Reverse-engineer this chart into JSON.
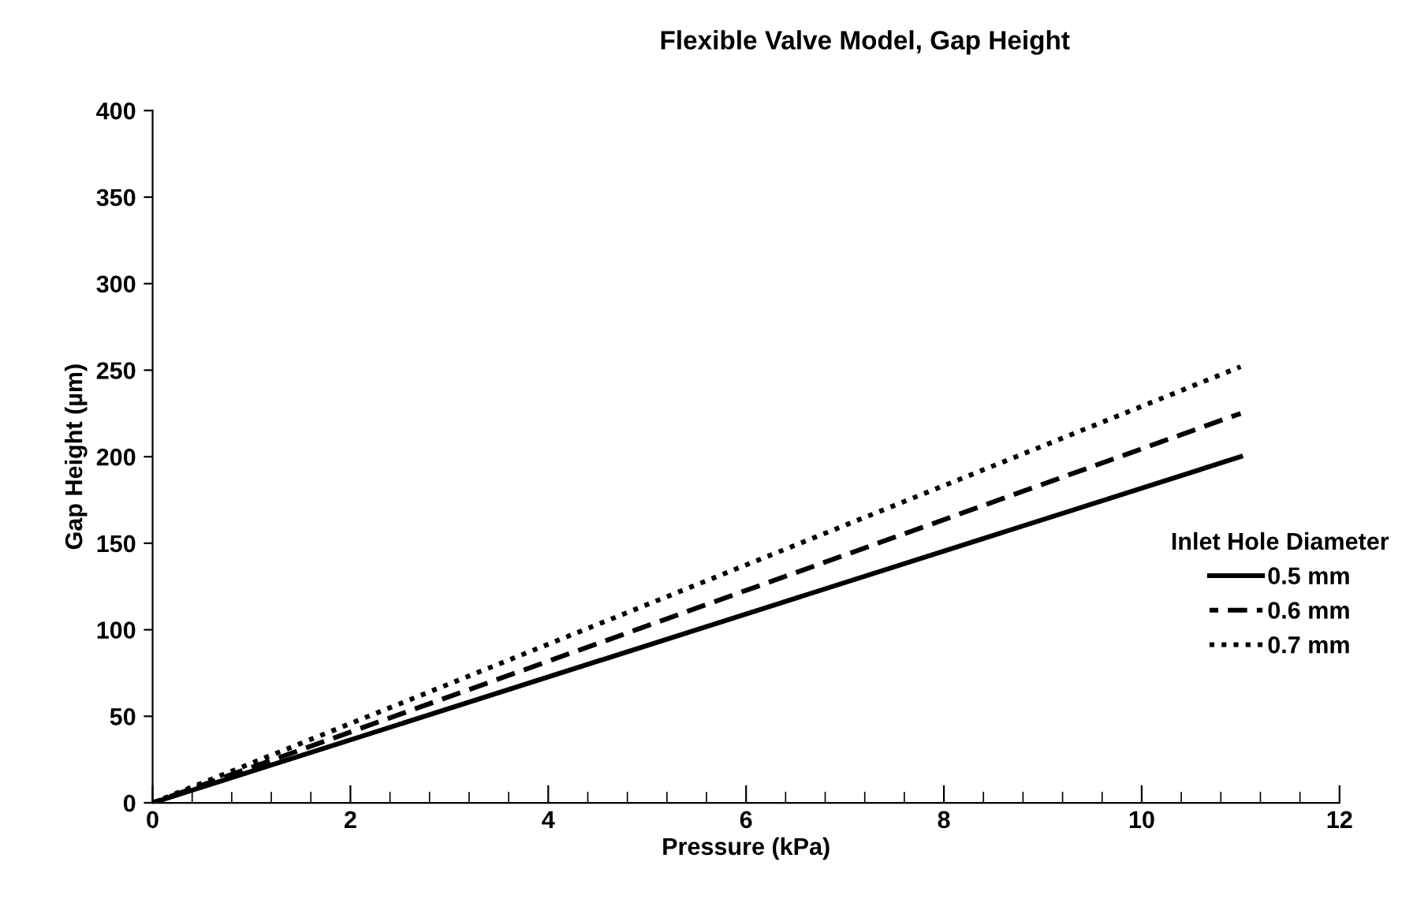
{
  "chart_data": {
    "type": "line",
    "title": "Flexible Valve Model, Gap Height",
    "xlabel": "Pressure (kPa)",
    "ylabel": "Gap Height (µm)",
    "legend_title": "Inlet Hole Diameter",
    "x": [
      0,
      11
    ],
    "series": [
      {
        "name": "0.5 mm",
        "color": "#000000",
        "values": [
          0,
          200
        ],
        "line_style": "solid"
      },
      {
        "name": "0.6 mm",
        "color": "#000000",
        "values": [
          0,
          225
        ],
        "line_style": "dashed"
      },
      {
        "name": "0.7 mm",
        "color": "#000000",
        "values": [
          0,
          252
        ],
        "line_style": "dotted"
      }
    ],
    "xlim": [
      0,
      12
    ],
    "xticks": [
      0,
      2,
      4,
      6,
      8,
      10,
      12
    ],
    "ylim": [
      0,
      400
    ],
    "yticks": [
      0,
      50,
      100,
      150,
      200,
      250,
      300,
      350,
      400
    ],
    "grid": false,
    "legend": "right",
    "marker": "none"
  }
}
